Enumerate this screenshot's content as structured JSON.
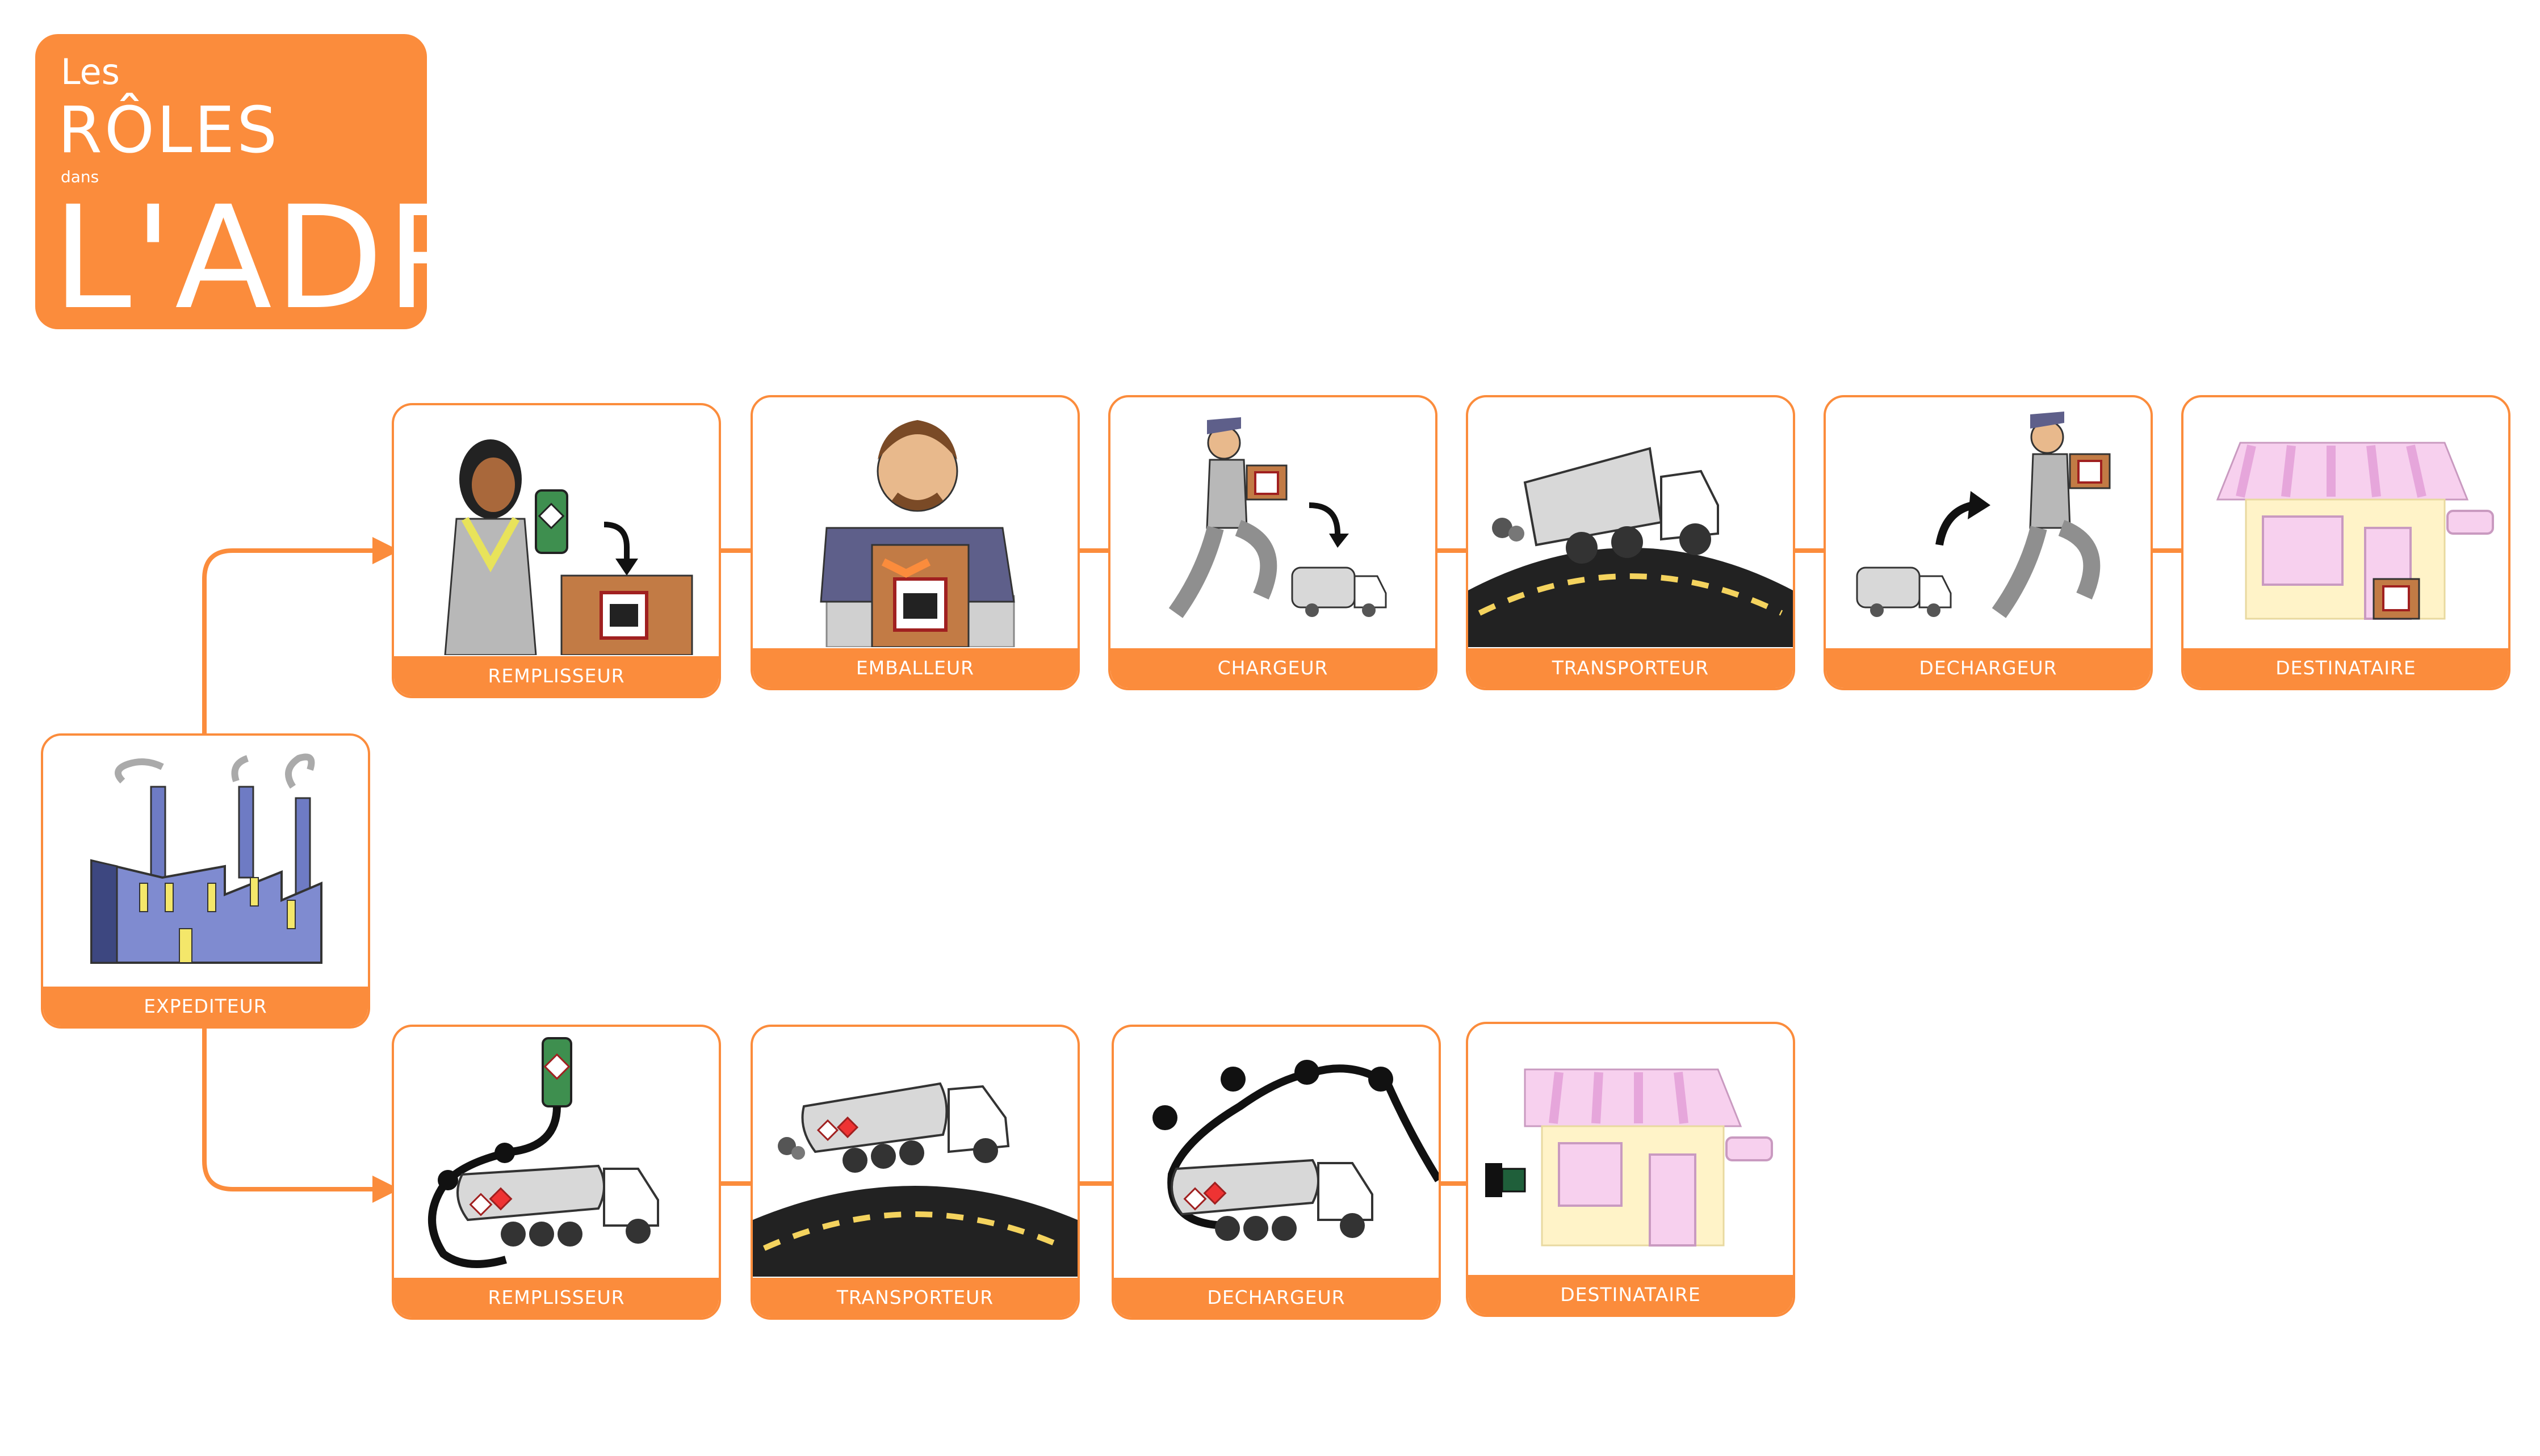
{
  "title": {
    "line1": "Les",
    "line2": "RÔLES",
    "line3": "dans",
    "line4": "L'ADR"
  },
  "colors": {
    "accent": "#FB8C3C",
    "factory": "#6E7BC4",
    "road": "#222222",
    "shop_awning": "#F5B8E4",
    "shop_wall": "#FFF3C8"
  },
  "origin": {
    "label": "EXPEDITEUR",
    "icon": "factory-icon"
  },
  "top_row": [
    {
      "label": "REMPLISSEUR",
      "icon": "worker-filling-icon"
    },
    {
      "label": "EMBALLEUR",
      "icon": "packer-icon"
    },
    {
      "label": "CHARGEUR",
      "icon": "loader-icon"
    },
    {
      "label": "TRANSPORTEUR",
      "icon": "truck-on-road-icon"
    },
    {
      "label": "DECHARGEUR",
      "icon": "unloader-icon"
    },
    {
      "label": "DESTINATAIRE",
      "icon": "shop-icon"
    }
  ],
  "bottom_row": [
    {
      "label": "REMPLISSEUR",
      "icon": "tank-filling-icon"
    },
    {
      "label": "TRANSPORTEUR",
      "icon": "tanker-on-road-icon"
    },
    {
      "label": "DECHARGEUR",
      "icon": "tank-unloading-icon"
    },
    {
      "label": "DESTINATAIRE",
      "icon": "shop-with-pipe-icon"
    }
  ]
}
